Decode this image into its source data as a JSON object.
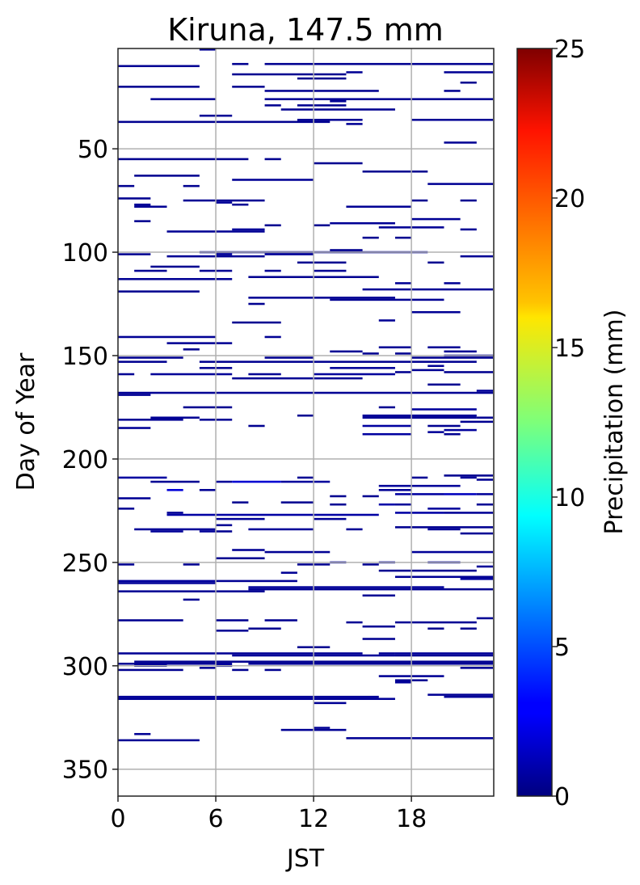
{
  "chart_data": {
    "type": "heatmap",
    "title": "Kiruna, 147.5 mm",
    "xlabel": "JST",
    "ylabel": "Day of Year",
    "xlim": [
      0,
      23
    ],
    "ylim": [
      363,
      1.5
    ],
    "xticks": [
      "0",
      "6",
      "12",
      "18"
    ],
    "xtick_values": [
      0,
      6,
      12,
      18
    ],
    "yticks": [
      "50",
      "100",
      "150",
      "200",
      "250",
      "300",
      "350"
    ],
    "ytick_values": [
      50,
      100,
      150,
      200,
      250,
      300,
      350
    ],
    "grid": true,
    "colormap": "jet",
    "colorbar": {
      "label": "Precipitation (mm)",
      "range": [
        0,
        25
      ],
      "ticks": [
        "0",
        "5",
        "10",
        "15",
        "20",
        "25"
      ],
      "tick_values": [
        0,
        5,
        10,
        15,
        20,
        25
      ],
      "position": "right"
    },
    "segments_format": [
      "day",
      "hour_start",
      "hour_end",
      "precip_mm"
    ],
    "segments": [
      [
        2,
        5,
        6,
        0.5
      ],
      [
        9,
        7,
        8,
        0.4
      ],
      [
        9,
        9,
        23,
        0.4
      ],
      [
        10,
        0,
        5,
        0.5
      ],
      [
        13,
        14,
        15,
        0.5
      ],
      [
        13,
        20,
        23,
        0.5
      ],
      [
        14,
        7,
        14,
        0.4
      ],
      [
        16,
        11,
        14,
        0.4
      ],
      [
        18,
        21,
        22,
        0.4
      ],
      [
        20,
        0,
        5,
        0.4
      ],
      [
        20,
        7,
        9,
        0.4
      ],
      [
        22,
        9,
        16,
        0.4
      ],
      [
        22,
        20,
        21,
        0.4
      ],
      [
        26,
        2,
        6,
        0.5
      ],
      [
        26,
        9,
        23,
        0.5
      ],
      [
        27,
        13,
        14,
        0.5
      ],
      [
        29,
        9,
        10,
        0.4
      ],
      [
        29,
        11,
        14,
        0.4
      ],
      [
        31,
        10,
        17,
        0.4
      ],
      [
        34,
        5,
        7,
        0.5
      ],
      [
        36,
        11,
        15,
        0.5
      ],
      [
        36,
        18,
        23,
        0.5
      ],
      [
        37,
        0,
        13,
        0.4
      ],
      [
        38,
        14,
        15,
        0.5
      ],
      [
        47,
        20,
        22,
        0.5
      ],
      [
        55,
        0,
        8,
        0.4
      ],
      [
        55,
        9,
        10,
        0.4
      ],
      [
        57,
        12,
        15,
        0.4
      ],
      [
        61,
        15,
        19,
        0.4
      ],
      [
        63,
        1,
        5,
        0.4
      ],
      [
        65,
        7,
        12,
        0.5
      ],
      [
        67,
        19,
        23,
        0.5
      ],
      [
        68,
        0,
        1,
        0.4
      ],
      [
        68,
        4,
        5,
        0.4
      ],
      [
        74,
        0,
        2,
        0.4
      ],
      [
        75,
        4,
        9,
        0.5
      ],
      [
        76,
        6,
        7,
        0.6
      ],
      [
        75,
        18,
        19,
        0.4
      ],
      [
        75,
        21,
        22,
        0.4
      ],
      [
        77,
        1,
        2,
        0.6
      ],
      [
        77,
        7,
        8,
        0.5
      ],
      [
        78,
        1,
        3,
        0.5
      ],
      [
        78,
        14,
        18,
        0.5
      ],
      [
        84,
        18,
        21,
        0.5
      ],
      [
        85,
        1,
        2,
        0.4
      ],
      [
        86,
        13,
        17,
        0.5
      ],
      [
        87,
        9,
        10,
        0.4
      ],
      [
        87,
        12,
        13,
        0.4
      ],
      [
        88,
        16,
        20,
        0.5
      ],
      [
        89,
        7,
        9,
        0.6
      ],
      [
        89,
        21,
        22,
        0.5
      ],
      [
        90,
        3,
        9,
        0.5
      ],
      [
        93,
        15,
        16,
        0.4
      ],
      [
        93,
        17,
        18,
        0.4
      ],
      [
        99,
        13,
        15,
        0.4
      ],
      [
        100,
        5,
        19,
        0.5
      ],
      [
        101,
        6,
        7,
        0.6
      ],
      [
        101,
        9,
        12,
        0.6
      ],
      [
        101,
        0,
        2,
        0.4
      ],
      [
        102,
        3,
        9,
        0.5
      ],
      [
        102,
        21,
        23,
        0.5
      ],
      [
        105,
        11,
        14,
        0.4
      ],
      [
        105,
        19,
        20,
        0.4
      ],
      [
        107,
        2,
        5,
        0.4
      ],
      [
        109,
        1,
        3,
        0.5
      ],
      [
        109,
        5,
        7,
        0.5
      ],
      [
        109,
        9,
        10,
        0.5
      ],
      [
        109,
        12,
        14,
        0.5
      ],
      [
        112,
        8,
        16,
        0.4
      ],
      [
        113,
        0,
        7,
        0.5
      ],
      [
        115,
        17,
        18,
        0.5
      ],
      [
        115,
        20,
        21,
        0.5
      ],
      [
        118,
        15,
        23,
        0.5
      ],
      [
        119,
        0,
        5,
        0.4
      ],
      [
        122,
        8,
        17,
        0.5
      ],
      [
        123,
        13,
        20,
        0.5
      ],
      [
        125,
        8,
        9,
        0.4
      ],
      [
        129,
        18,
        21,
        0.5
      ],
      [
        133,
        16,
        17,
        0.5
      ],
      [
        134,
        7,
        10,
        0.4
      ],
      [
        141,
        0,
        6,
        0.5
      ],
      [
        141,
        9,
        10,
        0.5
      ],
      [
        144,
        3,
        7,
        0.5
      ],
      [
        146,
        16,
        18,
        0.5
      ],
      [
        146,
        19,
        21,
        0.5
      ],
      [
        147,
        4,
        5,
        0.4
      ],
      [
        148,
        13,
        15,
        0.5
      ],
      [
        148,
        20,
        22,
        0.5
      ],
      [
        149,
        15,
        16,
        0.4
      ],
      [
        149,
        17,
        18,
        0.4
      ],
      [
        150,
        20,
        23,
        0.6
      ],
      [
        151,
        0,
        4,
        0.4
      ],
      [
        151,
        9,
        12,
        0.4
      ],
      [
        151,
        18,
        23,
        0.4
      ],
      [
        153,
        0,
        3,
        0.4
      ],
      [
        153,
        5,
        22,
        0.4
      ],
      [
        155,
        19,
        20,
        0.5
      ],
      [
        156,
        5,
        7,
        0.4
      ],
      [
        156,
        13,
        17,
        0.6
      ],
      [
        157,
        18,
        20,
        0.5
      ],
      [
        158,
        17,
        18,
        0.4
      ],
      [
        158,
        20,
        23,
        0.4
      ],
      [
        159,
        0,
        1,
        0.5
      ],
      [
        159,
        2,
        7,
        0.6
      ],
      [
        159,
        8,
        10,
        0.5
      ],
      [
        159,
        12,
        17,
        0.7
      ],
      [
        161,
        7,
        15,
        0.5
      ],
      [
        164,
        19,
        21,
        0.4
      ],
      [
        167,
        22,
        23,
        0.6
      ],
      [
        168,
        0,
        23,
        0.5
      ],
      [
        169,
        0,
        2,
        0.5
      ],
      [
        175,
        4,
        7,
        0.4
      ],
      [
        175,
        16,
        17,
        0.4
      ],
      [
        176,
        18,
        22,
        0.7
      ],
      [
        179,
        11,
        12,
        0.4
      ],
      [
        179,
        15,
        22,
        0.6
      ],
      [
        180,
        15,
        22,
        0.5
      ],
      [
        180,
        2,
        5,
        0.5
      ],
      [
        180,
        22,
        23,
        0.5
      ],
      [
        181,
        0,
        4,
        0.5
      ],
      [
        181,
        5,
        7,
        0.5
      ],
      [
        182,
        21,
        23,
        0.4
      ],
      [
        184,
        8,
        9,
        0.4
      ],
      [
        184,
        15,
        18,
        0.8
      ],
      [
        184,
        19,
        21,
        0.4
      ],
      [
        185,
        0,
        2,
        0.5
      ],
      [
        186,
        20,
        22,
        0.7
      ],
      [
        187,
        19,
        20,
        0.6
      ],
      [
        188,
        15,
        18,
        0.8
      ],
      [
        188,
        20,
        21,
        0.4
      ],
      [
        208,
        20,
        23,
        0.4
      ],
      [
        209,
        0,
        3,
        0.8
      ],
      [
        209,
        11,
        12,
        0.5
      ],
      [
        209,
        18,
        19,
        0.5
      ],
      [
        209,
        21,
        22,
        0.6
      ],
      [
        210,
        22,
        23,
        0.5
      ],
      [
        211,
        2,
        5,
        0.5
      ],
      [
        211,
        6,
        7,
        0.6
      ],
      [
        211,
        7,
        10,
        2.0
      ],
      [
        211,
        10,
        13,
        0.7
      ],
      [
        213,
        16,
        21,
        0.6
      ],
      [
        215,
        3,
        4,
        2.2
      ],
      [
        215,
        5,
        6,
        0.5
      ],
      [
        215,
        16,
        18,
        0.5
      ],
      [
        217,
        17,
        20,
        0.8
      ],
      [
        217,
        20,
        22,
        1.5
      ],
      [
        217,
        22,
        23,
        0.6
      ],
      [
        218,
        13,
        14,
        0.4
      ],
      [
        218,
        15,
        16,
        0.4
      ],
      [
        219,
        0,
        2,
        0.5
      ],
      [
        221,
        7,
        8,
        0.4
      ],
      [
        221,
        10,
        12,
        0.4
      ],
      [
        222,
        13,
        14,
        0.5
      ],
      [
        222,
        16,
        17,
        1.0
      ],
      [
        222,
        17,
        18,
        0.6
      ],
      [
        222,
        22,
        23,
        0.5
      ],
      [
        224,
        0,
        1,
        0.5
      ],
      [
        224,
        19,
        21,
        0.7
      ],
      [
        226,
        3,
        4,
        0.5
      ],
      [
        226,
        17,
        20,
        0.9
      ],
      [
        226,
        20,
        23,
        0.5
      ],
      [
        227,
        3,
        16,
        0.9
      ],
      [
        229,
        6,
        9,
        0.5
      ],
      [
        229,
        12,
        14,
        0.5
      ],
      [
        232,
        6,
        7,
        0.5
      ],
      [
        233,
        17,
        23,
        0.4
      ],
      [
        234,
        1,
        6,
        0.6
      ],
      [
        234,
        8,
        12,
        0.6
      ],
      [
        234,
        14,
        15,
        0.5
      ],
      [
        234,
        19,
        21,
        0.6
      ],
      [
        235,
        2,
        4,
        0.6
      ],
      [
        235,
        5,
        6,
        0.6
      ],
      [
        235,
        6,
        7,
        0.4
      ],
      [
        236,
        21,
        23,
        0.5
      ],
      [
        244,
        7,
        9,
        0.5
      ],
      [
        245,
        9,
        13,
        0.5
      ],
      [
        245,
        18,
        23,
        0.6
      ],
      [
        248,
        6,
        9,
        0.4
      ],
      [
        250,
        13,
        14,
        0.5
      ],
      [
        250,
        16,
        17,
        0.5
      ],
      [
        250,
        19,
        21,
        0.5
      ],
      [
        251,
        0,
        1,
        0.4
      ],
      [
        251,
        4,
        5,
        0.4
      ],
      [
        251,
        11,
        13,
        0.4
      ],
      [
        251,
        15,
        16,
        0.4
      ],
      [
        252,
        22,
        23,
        0.6
      ],
      [
        254,
        16,
        22,
        0.4
      ],
      [
        255,
        10,
        11,
        0.5
      ],
      [
        257,
        17,
        23,
        0.5
      ],
      [
        258,
        21,
        23,
        0.7
      ],
      [
        259,
        0,
        6,
        0.7
      ],
      [
        260,
        0,
        6,
        0.6
      ],
      [
        259,
        6,
        11,
        0.5
      ],
      [
        262,
        8,
        20,
        0.6
      ],
      [
        263,
        8,
        20,
        0.5
      ],
      [
        263,
        20,
        23,
        0.4
      ],
      [
        264,
        0,
        9,
        0.5
      ],
      [
        266,
        15,
        17,
        0.5
      ],
      [
        268,
        4,
        5,
        0.5
      ],
      [
        277,
        22,
        23,
        0.5
      ],
      [
        278,
        0,
        4,
        0.4
      ],
      [
        278,
        6,
        8,
        0.4
      ],
      [
        278,
        9,
        11,
        0.4
      ],
      [
        279,
        14,
        15,
        0.5
      ],
      [
        279,
        17,
        22,
        0.5
      ],
      [
        281,
        15,
        17,
        0.5
      ],
      [
        282,
        8,
        10,
        0.4
      ],
      [
        282,
        19,
        20,
        0.4
      ],
      [
        282,
        21,
        22,
        0.4
      ],
      [
        283,
        6,
        8,
        0.5
      ],
      [
        287,
        15,
        17,
        0.4
      ],
      [
        291,
        11,
        13,
        0.4
      ],
      [
        294,
        0,
        15,
        0.5
      ],
      [
        294,
        16,
        17,
        0.5
      ],
      [
        294,
        17,
        23,
        0.6
      ],
      [
        295,
        17,
        23,
        0.5
      ],
      [
        295,
        7,
        17,
        0.6
      ],
      [
        298,
        1,
        23,
        0.4
      ],
      [
        299,
        0,
        6,
        0.5
      ],
      [
        299,
        6,
        7,
        0.6
      ],
      [
        299,
        8,
        23,
        0.5
      ],
      [
        300,
        1,
        3,
        0.5
      ],
      [
        300,
        6,
        7,
        0.6
      ],
      [
        301,
        5,
        6,
        0.5
      ],
      [
        301,
        21,
        23,
        0.5
      ],
      [
        302,
        0,
        4,
        0.4
      ],
      [
        302,
        7,
        8,
        0.4
      ],
      [
        302,
        9,
        10,
        0.4
      ],
      [
        305,
        16,
        20,
        0.5
      ],
      [
        307,
        17,
        19,
        0.5
      ],
      [
        308,
        17,
        18,
        0.6
      ],
      [
        314,
        19,
        23,
        0.5
      ],
      [
        315,
        20,
        23,
        0.6
      ],
      [
        315,
        0,
        16,
        0.6
      ],
      [
        316,
        0,
        17,
        0.6
      ],
      [
        318,
        12,
        14,
        0.5
      ],
      [
        330,
        12,
        13,
        0.5
      ],
      [
        331,
        10,
        14,
        0.5
      ],
      [
        333,
        1,
        2,
        0.5
      ],
      [
        335,
        14,
        23,
        0.5
      ],
      [
        336,
        0,
        5,
        0.5
      ]
    ]
  }
}
